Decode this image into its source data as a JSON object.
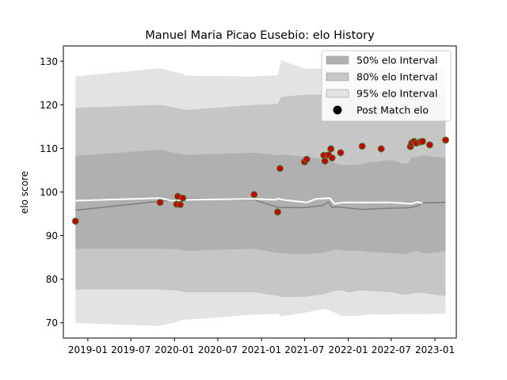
{
  "chart_data": {
    "type": "line",
    "title": "Manuel Maria Picao Eusebio: elo History",
    "xlabel": "",
    "ylabel": "elo score",
    "ylim": [
      66.5,
      133.5
    ],
    "xlim": [
      "2018-09-20",
      "2023-04-01"
    ],
    "grid": false,
    "legend_position": "top-right",
    "x_ticks": [
      "2019-01",
      "2019-07",
      "2020-01",
      "2020-07",
      "2021-01",
      "2021-07",
      "2022-01",
      "2022-07",
      "2023-01"
    ],
    "y_ticks": [
      70,
      80,
      90,
      100,
      110,
      120,
      130
    ],
    "colors": {
      "band_50": "#b0b0b0",
      "band_80": "#c6c6c6",
      "band_95": "#e3e3e3",
      "mean_line": "#808080",
      "expected_line": "#ffffff",
      "point_fill": "#cc0000",
      "point_edge": "#3a8a3a",
      "legend_marker": "#000000"
    },
    "legend": [
      {
        "label": "50% elo Interval",
        "kind": "band_50"
      },
      {
        "label": "80% elo Interval",
        "kind": "band_80"
      },
      {
        "label": "95% elo Interval",
        "kind": "band_95"
      },
      {
        "label": "Post Match elo",
        "kind": "marker"
      }
    ],
    "bands": {
      "x": [
        "2018-11-10",
        "2019-11-01",
        "2020-01-10",
        "2020-02-01",
        "2020-02-15",
        "2020-12-01",
        "2021-03-10",
        "2021-03-25",
        "2021-07-01",
        "2021-09-20",
        "2021-10-15",
        "2021-11-10",
        "2021-12-01",
        "2022-01-05",
        "2022-02-20",
        "2022-04-01",
        "2022-07-01",
        "2022-08-15",
        "2022-09-05",
        "2022-09-25",
        "2022-10-20",
        "2022-11-15",
        "2023-02-15"
      ],
      "p95_upper": [
        126.5,
        128.4,
        127.4,
        127.2,
        126.7,
        126.5,
        126.8,
        130.2,
        128.3,
        128.4,
        128.4,
        128.4,
        128.4,
        128.4,
        128.4,
        128.4,
        128.4,
        128.4,
        128.4,
        128.4,
        128.4,
        128.4,
        128.4
      ],
      "p80_upper": [
        119.3,
        120.0,
        119.3,
        119.0,
        118.8,
        120.0,
        120.2,
        121.8,
        122.3,
        122.4,
        122.4,
        122.4,
        122.4,
        122.4,
        122.4,
        122.4,
        122.4,
        122.4,
        122.4,
        122.4,
        122.4,
        122.4,
        122.4
      ],
      "p50_upper": [
        108.3,
        109.7,
        108.9,
        108.7,
        108.5,
        109.0,
        108.4,
        108.6,
        108.1,
        107.6,
        107.2,
        106.5,
        106.2,
        106.2,
        106.3,
        106.8,
        107.3,
        106.6,
        106.4,
        107.9,
        108.1,
        108.3,
        107.8
      ],
      "p50_lower": [
        87.0,
        87.0,
        86.9,
        86.7,
        86.5,
        87.0,
        86.0,
        86.0,
        85.7,
        86.1,
        86.5,
        86.8,
        86.7,
        86.5,
        86.5,
        86.3,
        86.0,
        85.8,
        85.7,
        86.3,
        86.5,
        85.9,
        86.4
      ],
      "p80_lower": [
        77.6,
        77.6,
        77.4,
        77.2,
        77.0,
        77.0,
        76.2,
        75.9,
        76.0,
        76.5,
        77.0,
        77.4,
        77.4,
        77.0,
        77.4,
        77.3,
        77.0,
        76.5,
        76.4,
        76.7,
        76.9,
        76.8,
        76.1
      ],
      "p95_lower": [
        69.9,
        69.3,
        70.2,
        70.7,
        70.7,
        71.9,
        72.0,
        71.5,
        72.3,
        73.2,
        72.8,
        72.2,
        71.6,
        71.6,
        71.6,
        71.9,
        71.9,
        72.0,
        72.0,
        72.0,
        72.0,
        72.0,
        72.1
      ]
    },
    "mean_line": {
      "x": [
        "2018-11-10",
        "2019-11-01",
        "2020-02-15",
        "2020-12-01",
        "2021-03-10",
        "2021-07-01",
        "2021-09-15",
        "2021-10-10",
        "2021-10-25",
        "2021-11-10",
        "2022-03-01",
        "2022-07-01",
        "2022-09-15",
        "2022-10-20",
        "2022-11-15",
        "2023-02-15"
      ],
      "y": [
        95.8,
        97.9,
        98.4,
        98.2,
        96.5,
        96.4,
        96.9,
        97.7,
        96.4,
        96.6,
        96.0,
        96.3,
        96.4,
        96.8,
        97.5,
        97.6
      ]
    },
    "expected_line": {
      "x": [
        "2018-11-10",
        "2019-11-01",
        "2019-12-20",
        "2020-02-15",
        "2020-12-01",
        "2021-03-01",
        "2021-03-15",
        "2021-04-01",
        "2021-07-10",
        "2021-08-20",
        "2021-10-15",
        "2021-11-05",
        "2021-12-10",
        "2022-07-01",
        "2022-09-25",
        "2022-10-20",
        "2022-11-10"
      ],
      "y": [
        98.0,
        98.6,
        98.0,
        98.2,
        98.4,
        98.2,
        98.5,
        98.2,
        97.6,
        98.4,
        98.6,
        97.3,
        97.6,
        97.6,
        97.3,
        97.7,
        97.4
      ]
    },
    "points": {
      "x": [
        "2018-11-10",
        "2019-11-01",
        "2020-01-10",
        "2020-01-15",
        "2020-01-25",
        "2020-02-05",
        "2020-12-01",
        "2021-03-10",
        "2021-03-20",
        "2021-07-01",
        "2021-07-10",
        "2021-09-20",
        "2021-09-25",
        "2021-10-10",
        "2021-10-20",
        "2021-10-25",
        "2021-11-30",
        "2022-03-01",
        "2022-05-20",
        "2022-09-20",
        "2022-09-25",
        "2022-10-05",
        "2022-10-15",
        "2022-11-01",
        "2022-11-10",
        "2022-12-10",
        "2023-02-15"
      ],
      "y": [
        93.3,
        97.6,
        97.2,
        99.0,
        97.1,
        98.6,
        99.4,
        95.4,
        105.4,
        106.9,
        107.5,
        108.4,
        107.1,
        108.5,
        109.9,
        107.8,
        109.0,
        110.5,
        109.9,
        110.4,
        111.2,
        111.6,
        111.2,
        111.5,
        111.6,
        110.8,
        111.9
      ]
    }
  }
}
